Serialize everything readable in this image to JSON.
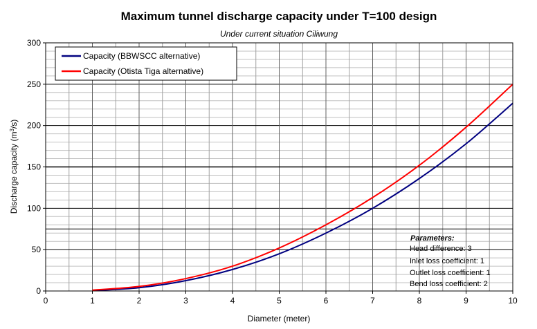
{
  "chart_data": {
    "type": "line",
    "title": "Maximum tunnel discharge capacity under T=100 design",
    "subtitle": "Under current situation Ciliwung",
    "xlabel": "Diameter (meter)",
    "ylabel_main": "Discharge capacity (m",
    "ylabel_sup": "3",
    "ylabel_end": "/s)",
    "xlim": [
      0,
      10
    ],
    "ylim": [
      0,
      300
    ],
    "xticks": [
      0,
      1,
      2,
      3,
      4,
      5,
      6,
      7,
      8,
      9,
      10
    ],
    "yticks": [
      0,
      50,
      100,
      150,
      200,
      250,
      300
    ],
    "series": [
      {
        "name": "Capacity (BBWSCC alternative)",
        "color": "#000080",
        "x": [
          1,
          2,
          3,
          4,
          5,
          6,
          7,
          8,
          9,
          10
        ],
        "values": [
          0.5,
          4.0,
          12.5,
          26.0,
          45.0,
          70.0,
          100.0,
          136.0,
          178.0,
          227.0
        ]
      },
      {
        "name": "Capacity (Otista Tiga alternative)",
        "color": "#ff0000",
        "x": [
          1,
          2,
          3,
          4,
          5,
          6,
          7,
          8,
          9,
          10
        ],
        "values": [
          1.0,
          5.5,
          15.0,
          30.0,
          52.0,
          80.0,
          113.0,
          152.0,
          198.0,
          250.0
        ]
      }
    ],
    "parameters": {
      "title": "Parameters:",
      "lines": [
        "Head difference: 3",
        "Inlet loss coefficient: 1",
        "Outlet loss coefficient: 1",
        "Bend loss coefficient: 2"
      ]
    }
  }
}
